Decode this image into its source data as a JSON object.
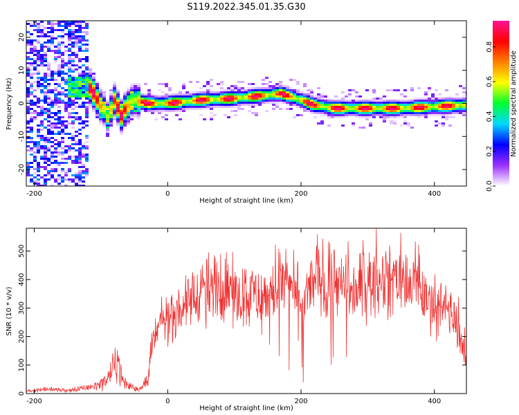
{
  "figure_title": "S119.2022.345.01.35.G30",
  "chart_data": [
    {
      "type": "heatmap",
      "title": "",
      "xlabel": "Height of straight line (km)",
      "ylabel": "Frequency (Hz)",
      "xlim": [
        -212,
        448
      ],
      "ylim": [
        -25,
        25
      ],
      "xticks": [
        -200,
        0,
        200,
        400
      ],
      "yticks": [
        -20,
        -10,
        0,
        10,
        20
      ],
      "grid": false,
      "ridge": {
        "x": [
          -135,
          -125,
          -115,
          -108,
          -100,
          -95,
          -90,
          -85,
          -80,
          -75,
          -70,
          -65,
          -60,
          -55,
          -50,
          -40,
          -30,
          0,
          50,
          100,
          150,
          170,
          185,
          200,
          220,
          250,
          280,
          350,
          400,
          448
        ],
        "y": [
          5,
          5,
          4.5,
          2,
          -1,
          -2,
          -4,
          -2,
          1,
          -1,
          -4,
          -2,
          -1,
          0.5,
          1,
          0.5,
          0,
          0,
          1,
          1.5,
          2.5,
          3,
          2,
          1,
          -0.5,
          -1.5,
          -1.5,
          -1.5,
          -1,
          -0.5
        ]
      },
      "colorbar": {
        "label": "Normalized spectral amplitude",
        "ticks": [
          0.0,
          0.2,
          0.4,
          0.6,
          0.8
        ],
        "range": [
          0,
          0.95
        ],
        "colors": [
          "#ffffff",
          "#9b30ff",
          "#0000ff",
          "#00d8ff",
          "#00ff30",
          "#ffff00",
          "#ff7f00",
          "#ff0000",
          "#ff1493"
        ]
      }
    },
    {
      "type": "line",
      "title": "",
      "xlabel": "Height of straight line (km)",
      "ylabel": "SNR (10 * v/v)",
      "xlim": [
        -212,
        448
      ],
      "ylim": [
        0,
        580
      ],
      "xticks": [
        -200,
        0,
        200,
        400
      ],
      "yticks": [
        0,
        100,
        200,
        300,
        400,
        500
      ],
      "grid": false,
      "series": [
        {
          "color": "#f03030",
          "x": [
            -212,
            -180,
            -150,
            -120,
            -100,
            -90,
            -80,
            -75,
            -70,
            -60,
            -50,
            -40,
            -35,
            -30,
            -25,
            -20,
            -15,
            -10,
            0,
            10,
            20,
            30,
            40,
            50,
            60,
            70,
            80,
            100,
            120,
            140,
            160,
            170,
            180,
            190,
            200,
            205,
            210,
            220,
            230,
            235,
            240,
            250,
            260,
            270,
            280,
            300,
            320,
            340,
            360,
            380,
            400,
            410,
            420,
            430,
            440,
            448
          ],
          "values": [
            10,
            15,
            10,
            20,
            35,
            50,
            90,
            130,
            60,
            30,
            20,
            15,
            40,
            60,
            140,
            200,
            210,
            250,
            260,
            280,
            300,
            320,
            350,
            370,
            360,
            380,
            370,
            350,
            360,
            330,
            360,
            400,
            380,
            350,
            320,
            300,
            360,
            400,
            420,
            380,
            360,
            420,
            370,
            350,
            360,
            380,
            400,
            410,
            380,
            350,
            320,
            300,
            300,
            260,
            200,
            100
          ]
        }
      ]
    }
  ]
}
